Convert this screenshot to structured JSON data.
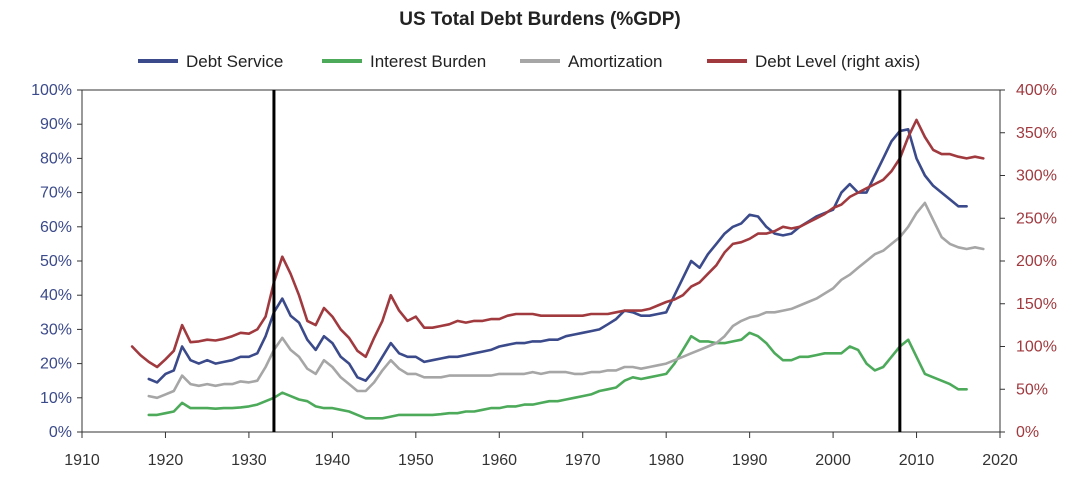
{
  "chart_data": {
    "type": "line",
    "title": "US Total Debt Burdens (%GDP)",
    "xlim": [
      1910,
      2020
    ],
    "ylim_left": [
      0,
      100
    ],
    "ylim_right": [
      0,
      400
    ],
    "x_ticks": [
      1910,
      1920,
      1930,
      1940,
      1950,
      1960,
      1970,
      1980,
      1990,
      2000,
      2010,
      2020
    ],
    "x_tick_labels": [
      "1910",
      "1920",
      "1930",
      "1940",
      "1950",
      "1960",
      "1970",
      "1980",
      "1990",
      "2000",
      "2010",
      "2020"
    ],
    "y_left_ticks": [
      0,
      10,
      20,
      30,
      40,
      50,
      60,
      70,
      80,
      90,
      100
    ],
    "y_left_tick_labels": [
      "0%",
      "10%",
      "20%",
      "30%",
      "40%",
      "50%",
      "60%",
      "70%",
      "80%",
      "90%",
      "100%"
    ],
    "y_right_ticks": [
      0,
      50,
      100,
      150,
      200,
      250,
      300,
      350,
      400
    ],
    "y_right_tick_labels": [
      "0%",
      "50%",
      "100%",
      "150%",
      "200%",
      "250%",
      "300%",
      "350%",
      "400%"
    ],
    "vertical_lines": [
      1933,
      2008
    ],
    "legend_position": "top",
    "series": [
      {
        "name": "Debt Service",
        "label": "Debt Service",
        "color": "#3b4a8a",
        "axis": "left",
        "x": [
          1918,
          1919,
          1920,
          1921,
          1922,
          1923,
          1924,
          1925,
          1926,
          1927,
          1928,
          1929,
          1930,
          1931,
          1932,
          1933,
          1934,
          1935,
          1936,
          1937,
          1938,
          1939,
          1940,
          1941,
          1942,
          1943,
          1944,
          1945,
          1946,
          1947,
          1948,
          1949,
          1950,
          1951,
          1952,
          1953,
          1954,
          1955,
          1956,
          1957,
          1958,
          1959,
          1960,
          1961,
          1962,
          1963,
          1964,
          1965,
          1966,
          1967,
          1968,
          1969,
          1970,
          1971,
          1972,
          1973,
          1974,
          1975,
          1976,
          1977,
          1978,
          1979,
          1980,
          1981,
          1982,
          1983,
          1984,
          1985,
          1986,
          1987,
          1988,
          1989,
          1990,
          1991,
          1992,
          1993,
          1994,
          1995,
          1996,
          1997,
          1998,
          1999,
          2000,
          2001,
          2002,
          2003,
          2004,
          2005,
          2006,
          2007,
          2008,
          2009,
          2010,
          2011,
          2012,
          2013,
          2014,
          2015,
          2016
        ],
        "values": [
          15.5,
          14.5,
          17,
          18,
          25,
          21,
          20,
          21,
          20,
          20.5,
          21,
          22,
          22,
          23,
          28,
          35,
          39,
          34,
          32,
          27,
          24,
          28,
          26,
          22,
          20,
          16,
          15,
          18,
          22,
          26,
          23,
          22,
          22,
          20.5,
          21,
          21.5,
          22,
          22,
          22.5,
          23,
          23.5,
          24,
          25,
          25.5,
          26,
          26,
          26.5,
          26.5,
          27,
          27,
          28,
          28.5,
          29,
          29.5,
          30,
          31.5,
          33,
          35.5,
          35,
          34,
          34,
          34.5,
          35,
          40,
          45,
          50,
          48,
          52,
          55,
          58,
          60,
          61,
          63.5,
          63,
          60,
          58,
          57.5,
          58,
          60,
          61.5,
          63,
          64,
          65,
          70,
          72.5,
          70,
          70,
          75,
          80,
          85,
          88,
          88.5,
          80,
          75,
          72,
          70,
          68,
          66,
          66
        ]
      },
      {
        "name": "Interest Burden",
        "label": "Interest Burden",
        "color": "#4caa5a",
        "axis": "left",
        "x": [
          1918,
          1919,
          1920,
          1921,
          1922,
          1923,
          1924,
          1925,
          1926,
          1927,
          1928,
          1929,
          1930,
          1931,
          1932,
          1933,
          1934,
          1935,
          1936,
          1937,
          1938,
          1939,
          1940,
          1941,
          1942,
          1943,
          1944,
          1945,
          1946,
          1947,
          1948,
          1949,
          1950,
          1951,
          1952,
          1953,
          1954,
          1955,
          1956,
          1957,
          1958,
          1959,
          1960,
          1961,
          1962,
          1963,
          1964,
          1965,
          1966,
          1967,
          1968,
          1969,
          1970,
          1971,
          1972,
          1973,
          1974,
          1975,
          1976,
          1977,
          1978,
          1979,
          1980,
          1981,
          1982,
          1983,
          1984,
          1985,
          1986,
          1987,
          1988,
          1989,
          1990,
          1991,
          1992,
          1993,
          1994,
          1995,
          1996,
          1997,
          1998,
          1999,
          2000,
          2001,
          2002,
          2003,
          2004,
          2005,
          2006,
          2007,
          2008,
          2009,
          2010,
          2011,
          2012,
          2013,
          2014,
          2015,
          2016
        ],
        "values": [
          5,
          5,
          5.5,
          6,
          8.5,
          7,
          7,
          7,
          6.8,
          7,
          7,
          7.2,
          7.5,
          8,
          9,
          10,
          11.5,
          10.5,
          9.5,
          9,
          7.5,
          7,
          7,
          6.5,
          6,
          5,
          4,
          4,
          4,
          4.5,
          5,
          5,
          5,
          5,
          5,
          5.2,
          5.5,
          5.5,
          6,
          6,
          6.5,
          7,
          7,
          7.5,
          7.5,
          8,
          8,
          8.5,
          9,
          9,
          9.5,
          10,
          10.5,
          11,
          12,
          12.5,
          13,
          15,
          16,
          15.5,
          16,
          16.5,
          17,
          20,
          24,
          28,
          26.5,
          26.5,
          26,
          26,
          26.5,
          27,
          29,
          28,
          26,
          23,
          21,
          21,
          22,
          22,
          22.5,
          23,
          23,
          23,
          25,
          24,
          20,
          18,
          19,
          22,
          25,
          27,
          22,
          17,
          16,
          15,
          14,
          12.5,
          12.5
        ]
      },
      {
        "name": "Amortization",
        "label": "Amortization",
        "color": "#a6a6a6",
        "axis": "left",
        "x": [
          1918,
          1919,
          1920,
          1921,
          1922,
          1923,
          1924,
          1925,
          1926,
          1927,
          1928,
          1929,
          1930,
          1931,
          1932,
          1933,
          1934,
          1935,
          1936,
          1937,
          1938,
          1939,
          1940,
          1941,
          1942,
          1943,
          1944,
          1945,
          1946,
          1947,
          1948,
          1949,
          1950,
          1951,
          1952,
          1953,
          1954,
          1955,
          1956,
          1957,
          1958,
          1959,
          1960,
          1961,
          1962,
          1963,
          1964,
          1965,
          1966,
          1967,
          1968,
          1969,
          1970,
          1971,
          1972,
          1973,
          1974,
          1975,
          1976,
          1977,
          1978,
          1979,
          1980,
          1981,
          1982,
          1983,
          1984,
          1985,
          1986,
          1987,
          1988,
          1989,
          1990,
          1991,
          1992,
          1993,
          1994,
          1995,
          1996,
          1997,
          1998,
          1999,
          2000,
          2001,
          2002,
          2003,
          2004,
          2005,
          2006,
          2007,
          2008,
          2009,
          2010,
          2011,
          2012,
          2013,
          2014,
          2015,
          2016,
          2017,
          2018
        ],
        "values": [
          10.5,
          10,
          11,
          12,
          16.5,
          14,
          13.5,
          14,
          13.5,
          14,
          14,
          14.8,
          14.5,
          15,
          19,
          24,
          27.5,
          24,
          22,
          18.5,
          17,
          21,
          19,
          16,
          14,
          12,
          12,
          14.5,
          18,
          21,
          18.5,
          17,
          17,
          16,
          16,
          16,
          16.5,
          16.5,
          16.5,
          16.5,
          16.5,
          16.5,
          17,
          17,
          17,
          17,
          17.5,
          17,
          17.5,
          17.5,
          17.5,
          17,
          17,
          17.5,
          17.5,
          18,
          18,
          19,
          19,
          18.5,
          19,
          19.5,
          20,
          21,
          22,
          23,
          24,
          25,
          26,
          28,
          31,
          32.5,
          33.5,
          34,
          35,
          35,
          35.5,
          36,
          37,
          38,
          39,
          40.5,
          42,
          44.5,
          46,
          48,
          50,
          52,
          53,
          55,
          57,
          60,
          64,
          67,
          62,
          57,
          55,
          54,
          53.5,
          54,
          53.5
        ]
      },
      {
        "name": "Debt Level (right axis)",
        "label": "Debt Level (right axis)",
        "color": "#a03a3f",
        "axis": "right",
        "x": [
          1916,
          1917,
          1918,
          1919,
          1920,
          1921,
          1922,
          1923,
          1924,
          1925,
          1926,
          1927,
          1928,
          1929,
          1930,
          1931,
          1932,
          1933,
          1934,
          1935,
          1936,
          1937,
          1938,
          1939,
          1940,
          1941,
          1942,
          1943,
          1944,
          1945,
          1946,
          1947,
          1948,
          1949,
          1950,
          1951,
          1952,
          1953,
          1954,
          1955,
          1956,
          1957,
          1958,
          1959,
          1960,
          1961,
          1962,
          1963,
          1964,
          1965,
          1966,
          1967,
          1968,
          1969,
          1970,
          1971,
          1972,
          1973,
          1974,
          1975,
          1976,
          1977,
          1978,
          1979,
          1980,
          1981,
          1982,
          1983,
          1984,
          1985,
          1986,
          1987,
          1988,
          1989,
          1990,
          1991,
          1992,
          1993,
          1994,
          1995,
          1996,
          1997,
          1998,
          1999,
          2000,
          2001,
          2002,
          2003,
          2004,
          2005,
          2006,
          2007,
          2008,
          2009,
          2010,
          2011,
          2012,
          2013,
          2014,
          2015,
          2016,
          2017,
          2018
        ],
        "values": [
          100,
          90,
          82,
          76,
          85,
          95,
          125,
          105,
          106,
          108,
          107,
          109,
          112,
          116,
          115,
          120,
          135,
          175,
          205,
          185,
          160,
          130,
          125,
          145,
          135,
          120,
          110,
          95,
          88,
          110,
          130,
          160,
          142,
          130,
          135,
          122,
          122,
          124,
          126,
          130,
          128,
          130,
          130,
          132,
          132,
          136,
          138,
          138,
          138,
          136,
          136,
          136,
          136,
          136,
          136,
          138,
          138,
          138,
          140,
          142,
          142,
          142,
          144,
          148,
          152,
          155,
          160,
          170,
          175,
          185,
          195,
          210,
          220,
          222,
          226,
          232,
          232,
          235,
          240,
          238,
          240,
          245,
          250,
          255,
          262,
          266,
          275,
          280,
          285,
          290,
          295,
          305,
          320,
          345,
          365,
          345,
          330,
          325,
          325,
          322,
          320,
          322,
          320
        ]
      }
    ]
  }
}
